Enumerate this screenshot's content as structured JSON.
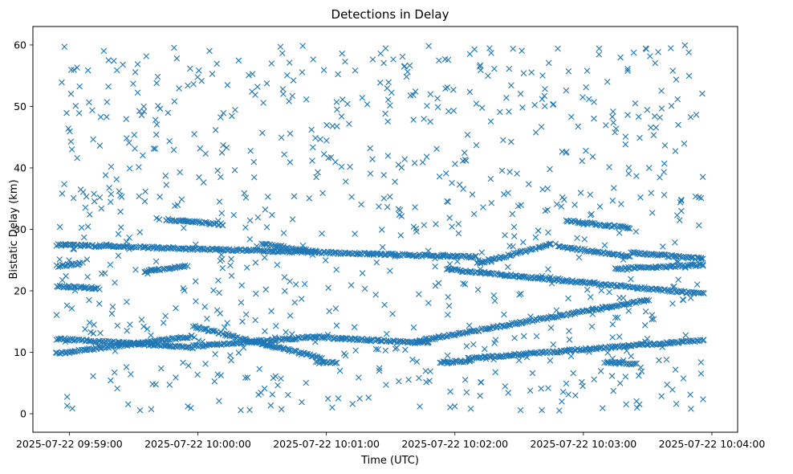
{
  "chart_data": {
    "type": "scatter",
    "title": "Detections in Delay",
    "xlabel": "Time (UTC)",
    "ylabel": "Bistatic Delay (km)",
    "marker": "x",
    "color": "#1f77b4",
    "grid": false,
    "x_unit": "seconds after 2025-07-22 09:59:00",
    "xlim": [
      -17,
      312
    ],
    "ylim": [
      -3,
      63
    ],
    "xticks": [
      {
        "value": 0,
        "label": "2025-07-22 09:59:00"
      },
      {
        "value": 60,
        "label": "2025-07-22 10:00:00"
      },
      {
        "value": 120,
        "label": "2025-07-22 10:01:00"
      },
      {
        "value": 180,
        "label": "2025-07-22 10:02:00"
      },
      {
        "value": 240,
        "label": "2025-07-22 10:03:00"
      },
      {
        "value": 300,
        "label": "2025-07-22 10:04:00"
      }
    ],
    "yticks": [
      0,
      10,
      20,
      30,
      40,
      50,
      60
    ],
    "time_range": [
      -6,
      296
    ],
    "tracks": [
      {
        "name": "track-27-25",
        "x_start": -6,
        "x_end": 190,
        "y_start": 27.5,
        "y_end": 25.5
      },
      {
        "name": "track-23-19",
        "x_start": 176,
        "x_end": 296,
        "y_start": 23.5,
        "y_end": 19.5
      },
      {
        "name": "track-10-13",
        "x_start": -6,
        "x_end": 58,
        "y_start": 9.8,
        "y_end": 12.6
      },
      {
        "name": "track-12-11",
        "x_start": -6,
        "x_end": 58,
        "y_start": 12.2,
        "y_end": 10.8
      },
      {
        "name": "track-14-9",
        "x_start": 58,
        "x_end": 118,
        "y_start": 14.2,
        "y_end": 9.0
      },
      {
        "name": "track-11-13",
        "x_start": 58,
        "x_end": 118,
        "y_start": 11.0,
        "y_end": 12.6
      },
      {
        "name": "track-12-11b",
        "x_start": 118,
        "x_end": 168,
        "y_start": 12.4,
        "y_end": 11.5
      },
      {
        "name": "track-12-18",
        "x_start": 162,
        "x_end": 270,
        "y_start": 11.8,
        "y_end": 18.5
      },
      {
        "name": "track-9-12",
        "x_start": 186,
        "x_end": 296,
        "y_start": 9.0,
        "y_end": 12.0
      },
      {
        "name": "track-24-25",
        "x_start": -6,
        "x_end": 6,
        "y_start": 24.0,
        "y_end": 24.5
      },
      {
        "name": "track-20-21",
        "x_start": -6,
        "x_end": 14,
        "y_start": 20.8,
        "y_end": 20.4
      },
      {
        "name": "track-23-24",
        "x_start": 35,
        "x_end": 55,
        "y_start": 23.2,
        "y_end": 24.0
      },
      {
        "name": "track-24-27",
        "x_start": 190,
        "x_end": 225,
        "y_start": 24.4,
        "y_end": 27.6
      },
      {
        "name": "track-27-25b",
        "x_start": 228,
        "x_end": 262,
        "y_start": 27.2,
        "y_end": 25.6
      },
      {
        "name": "track-26-25",
        "x_start": 262,
        "x_end": 296,
        "y_start": 26.2,
        "y_end": 25.2
      },
      {
        "name": "track-24-24",
        "x_start": 255,
        "x_end": 296,
        "y_start": 23.6,
        "y_end": 24.2
      },
      {
        "name": "track-31-30",
        "x_start": 45,
        "x_end": 72,
        "y_start": 31.6,
        "y_end": 30.8
      },
      {
        "name": "track-27-26",
        "x_start": 90,
        "x_end": 115,
        "y_start": 27.6,
        "y_end": 26.4
      },
      {
        "name": "track-31-30b",
        "x_start": 232,
        "x_end": 262,
        "y_start": 31.4,
        "y_end": 30.2
      },
      {
        "name": "track-8-8",
        "x_start": 115,
        "x_end": 125,
        "y_start": 8.3,
        "y_end": 8.3
      },
      {
        "name": "track-8-8b",
        "x_start": 173,
        "x_end": 188,
        "y_start": 8.4,
        "y_end": 8.6
      },
      {
        "name": "track-8-8c",
        "x_start": 250,
        "x_end": 265,
        "y_start": 8.4,
        "y_end": 8.1
      }
    ],
    "clutter": {
      "count": 850,
      "y_range": [
        0.5,
        60
      ],
      "seed": 20250722
    }
  }
}
